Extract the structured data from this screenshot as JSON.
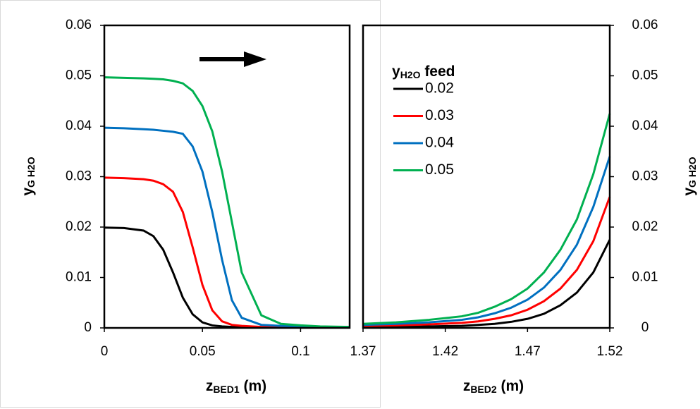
{
  "chart_data": [
    {
      "type": "line",
      "xlabel": {
        "main": "z",
        "sub": "BED1",
        "rest": " (m)"
      },
      "ylabel": {
        "main": "y",
        "sub": "G H2O"
      },
      "x": [
        0,
        0.01,
        0.02,
        0.025,
        0.03,
        0.035,
        0.04,
        0.045,
        0.05,
        0.055,
        0.06,
        0.065,
        0.07,
        0.08,
        0.09,
        0.1,
        0.11,
        0.125
      ],
      "series": [
        {
          "color": "#000000",
          "values": [
            0.0199,
            0.0198,
            0.0193,
            0.0182,
            0.0155,
            0.011,
            0.006,
            0.0027,
            0.0011,
            0.0005,
            0.0003,
            0.0002,
            0.0002,
            0.0001,
            0.0001,
            0.0001,
            0.0001,
            0.0001
          ]
        },
        {
          "color": "#ff0000",
          "values": [
            0.0298,
            0.0297,
            0.0295,
            0.0292,
            0.0285,
            0.027,
            0.023,
            0.016,
            0.0085,
            0.0035,
            0.0013,
            0.0006,
            0.0004,
            0.0002,
            0.0002,
            0.0002,
            0.0001,
            0.0001
          ]
        },
        {
          "color": "#0070c0",
          "values": [
            0.0397,
            0.0396,
            0.0394,
            0.0393,
            0.0391,
            0.0389,
            0.0385,
            0.036,
            0.031,
            0.023,
            0.0135,
            0.0055,
            0.002,
            0.0006,
            0.0004,
            0.0003,
            0.0002,
            0.0002
          ]
        },
        {
          "color": "#00b050",
          "values": [
            0.0497,
            0.0496,
            0.0495,
            0.0494,
            0.0493,
            0.049,
            0.0485,
            0.047,
            0.044,
            0.039,
            0.031,
            0.021,
            0.011,
            0.0025,
            0.0008,
            0.0005,
            0.0003,
            0.0002
          ]
        }
      ],
      "xlim": [
        0,
        0.125
      ],
      "xticks": [
        0,
        0.05,
        0.1
      ],
      "ylim": [
        0,
        0.06
      ],
      "yticks": [
        0,
        0.01,
        0.02,
        0.03,
        0.04,
        0.05,
        0.06
      ],
      "yaxis_side": "left"
    },
    {
      "type": "line",
      "xlabel": {
        "main": "z",
        "sub": "BED2",
        "rest": " (m)"
      },
      "ylabel": {
        "main": "y",
        "sub": "G H2O"
      },
      "legend_title": {
        "main": "y",
        "sub": "H2O",
        "rest": " feed"
      },
      "x": [
        1.37,
        1.39,
        1.41,
        1.43,
        1.44,
        1.45,
        1.46,
        1.47,
        1.48,
        1.49,
        1.5,
        1.51,
        1.52
      ],
      "series": [
        {
          "name": "0.02",
          "color": "#000000",
          "values": [
            0.0001,
            0.0002,
            0.0003,
            0.0004,
            0.0006,
            0.0008,
            0.0012,
            0.0018,
            0.0028,
            0.0045,
            0.007,
            0.011,
            0.0175
          ]
        },
        {
          "name": "0.03",
          "color": "#ff0000",
          "values": [
            0.0004,
            0.0005,
            0.0007,
            0.001,
            0.0013,
            0.0018,
            0.0025,
            0.0036,
            0.0053,
            0.0078,
            0.0115,
            0.0172,
            0.026
          ]
        },
        {
          "name": "0.04",
          "color": "#0070c0",
          "values": [
            0.0006,
            0.0008,
            0.0011,
            0.0016,
            0.0021,
            0.0029,
            0.004,
            0.0056,
            0.008,
            0.0115,
            0.0165,
            0.024,
            0.034
          ]
        },
        {
          "name": "0.05",
          "color": "#00b050",
          "values": [
            0.0008,
            0.0011,
            0.0016,
            0.0023,
            0.003,
            0.0042,
            0.0057,
            0.0078,
            0.011,
            0.0155,
            0.0215,
            0.0305,
            0.0425
          ]
        }
      ],
      "xlim": [
        1.37,
        1.52
      ],
      "xticks": [
        1.37,
        1.42,
        1.47,
        1.52
      ],
      "ylim": [
        0,
        0.06
      ],
      "yticks": [
        0,
        0.01,
        0.02,
        0.03,
        0.04,
        0.05,
        0.06
      ],
      "yaxis_side": "right"
    }
  ]
}
